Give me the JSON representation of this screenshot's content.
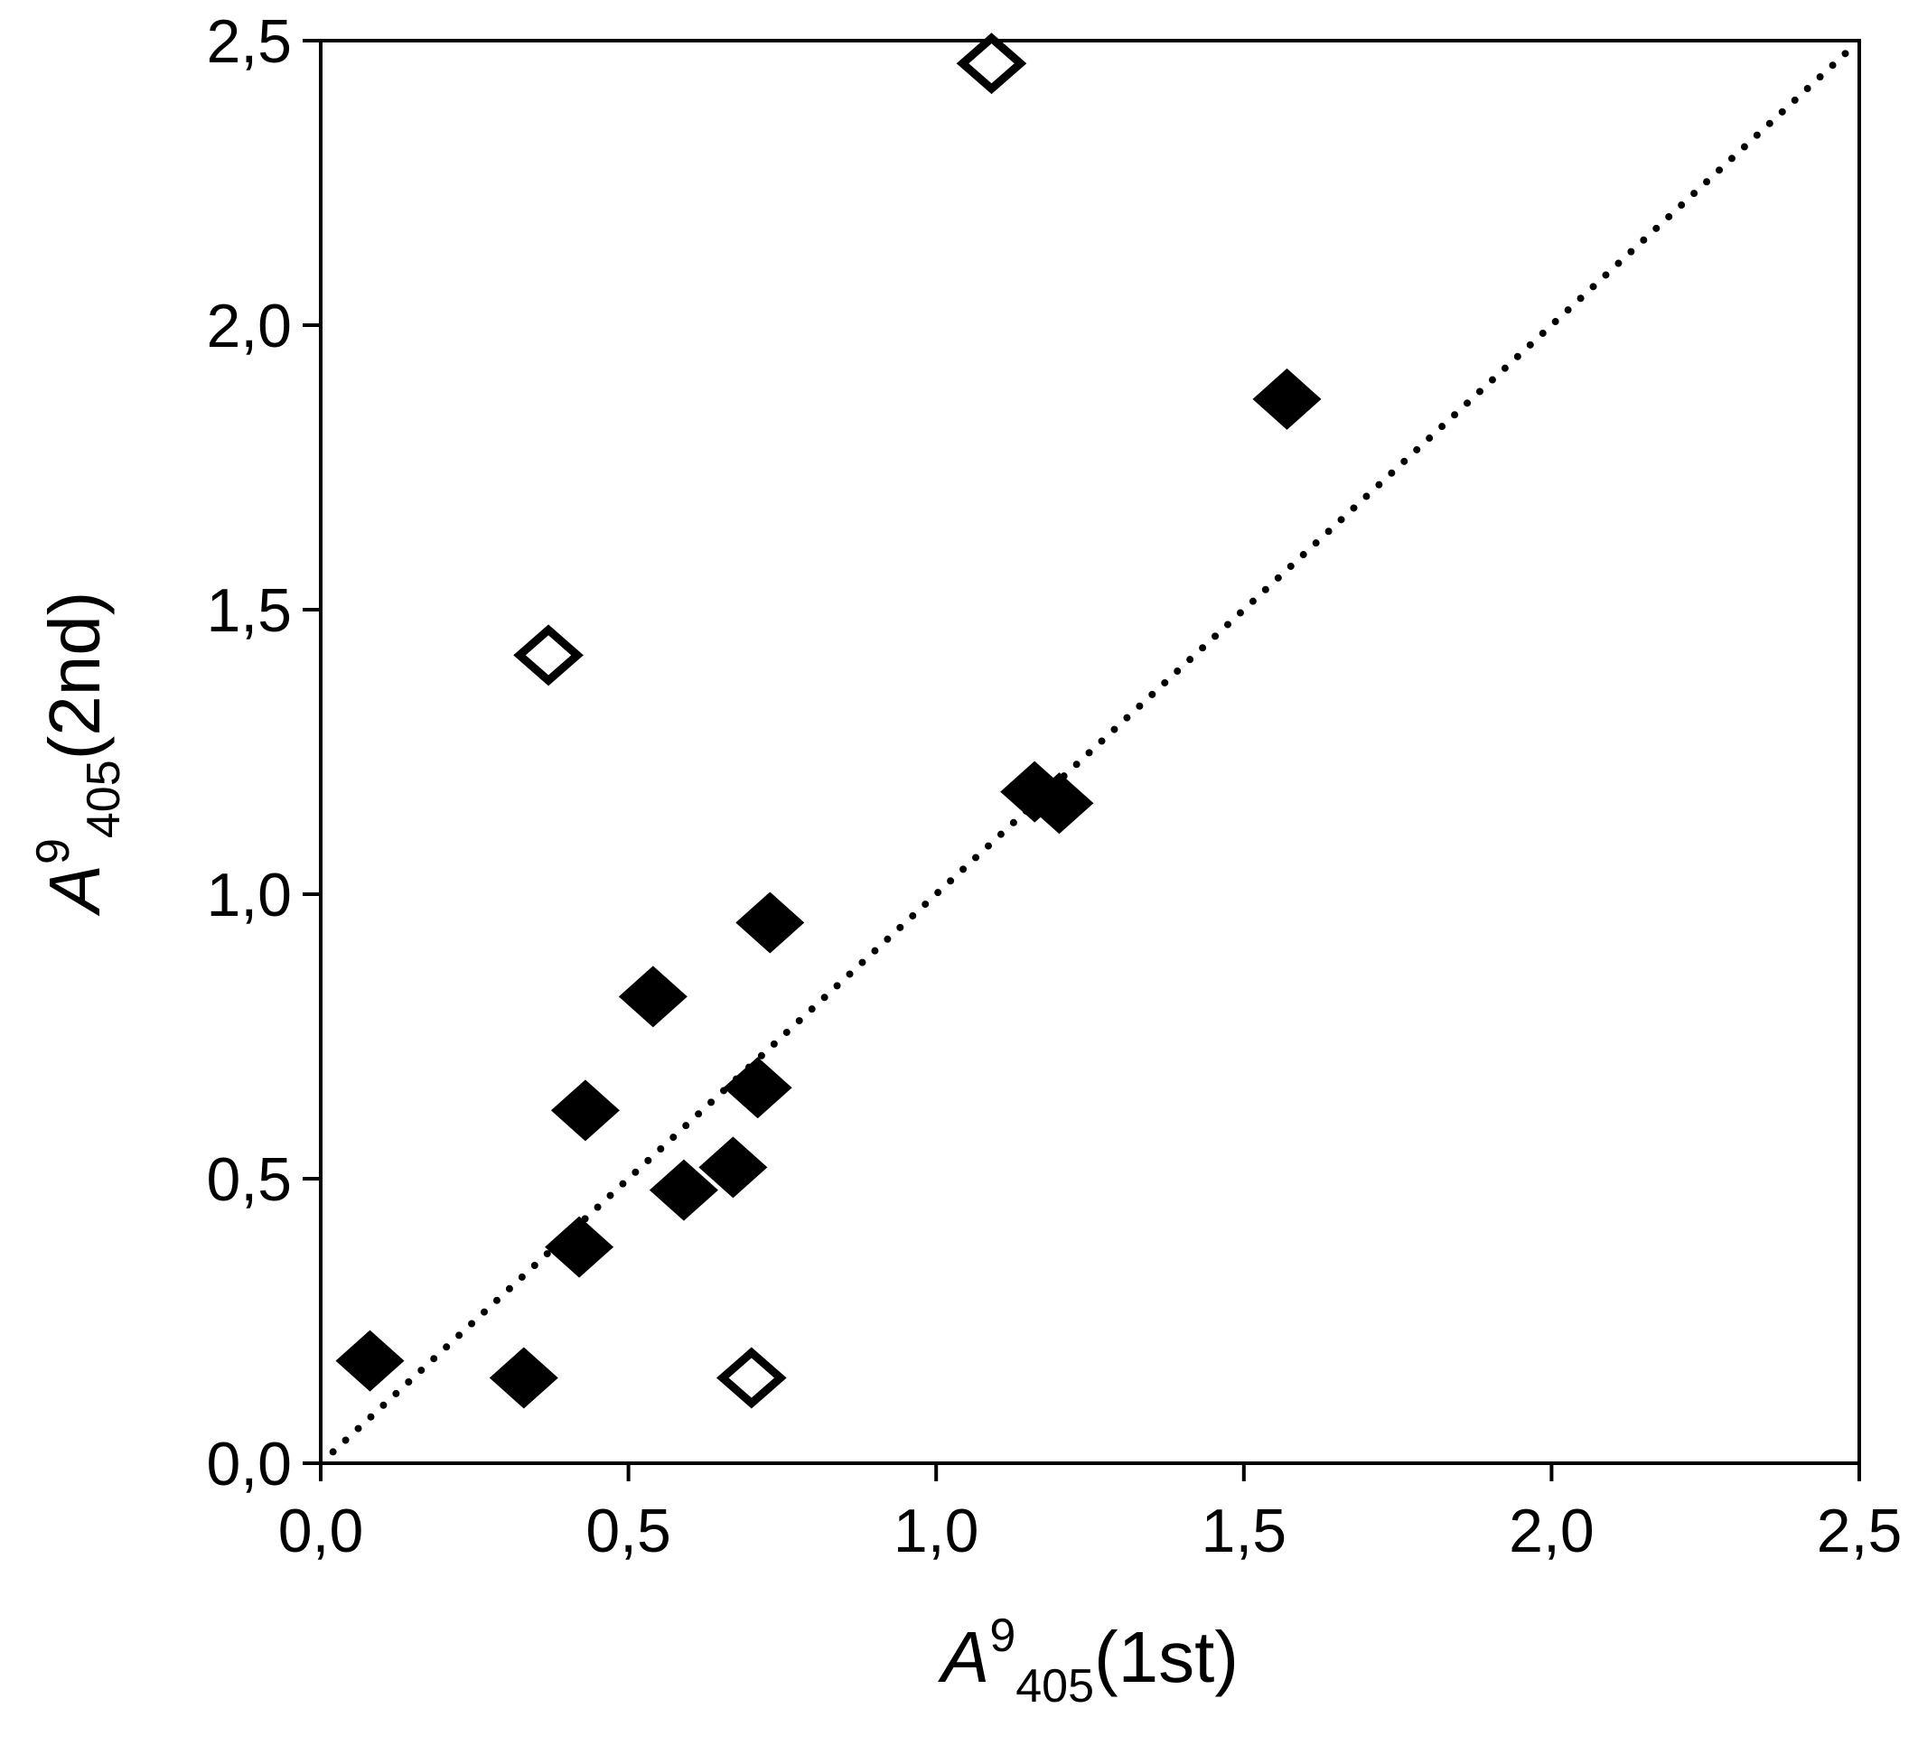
{
  "chart_data": {
    "type": "scatter",
    "title": "",
    "xlabel": {
      "symbol": "A",
      "superscript": "9",
      "subscript": "405",
      "suffix": "(1st)"
    },
    "ylabel": {
      "symbol": "A",
      "superscript": "9",
      "subscript": "405",
      "suffix": "(2nd)"
    },
    "xlim": [
      0,
      2.5
    ],
    "ylim": [
      0,
      2.5
    ],
    "xticks": [
      0,
      0.5,
      1.0,
      1.5,
      2.0,
      2.5
    ],
    "yticks": [
      0,
      0.5,
      1.0,
      1.5,
      2.0,
      2.5
    ],
    "xtick_labels": [
      "0,0",
      "0,5",
      "1,0",
      "1,5",
      "2,0",
      "2,5"
    ],
    "ytick_labels": [
      "0,0",
      "0,5",
      "1,0",
      "1,5",
      "2,0",
      "2,5"
    ],
    "grid": false,
    "legend": "none",
    "reference_line": {
      "style": "dotted",
      "from": [
        0.02,
        0.02
      ],
      "to": [
        2.48,
        2.48
      ]
    },
    "series": [
      {
        "marker": "filled-diamond",
        "color": "#000000",
        "points": [
          {
            "x": 0.08,
            "y": 0.18
          },
          {
            "x": 0.33,
            "y": 0.15
          },
          {
            "x": 0.42,
            "y": 0.38
          },
          {
            "x": 0.43,
            "y": 0.62
          },
          {
            "x": 0.54,
            "y": 0.82
          },
          {
            "x": 0.59,
            "y": 0.48
          },
          {
            "x": 0.67,
            "y": 0.52
          },
          {
            "x": 0.71,
            "y": 0.66
          },
          {
            "x": 0.73,
            "y": 0.95
          },
          {
            "x": 1.16,
            "y": 1.18
          },
          {
            "x": 1.2,
            "y": 1.16
          },
          {
            "x": 1.57,
            "y": 1.87
          }
        ]
      },
      {
        "marker": "open-diamond",
        "color": "#000000",
        "points": [
          {
            "x": 0.37,
            "y": 1.42
          },
          {
            "x": 0.7,
            "y": 0.15
          },
          {
            "x": 1.09,
            "y": 2.46
          }
        ]
      }
    ]
  }
}
